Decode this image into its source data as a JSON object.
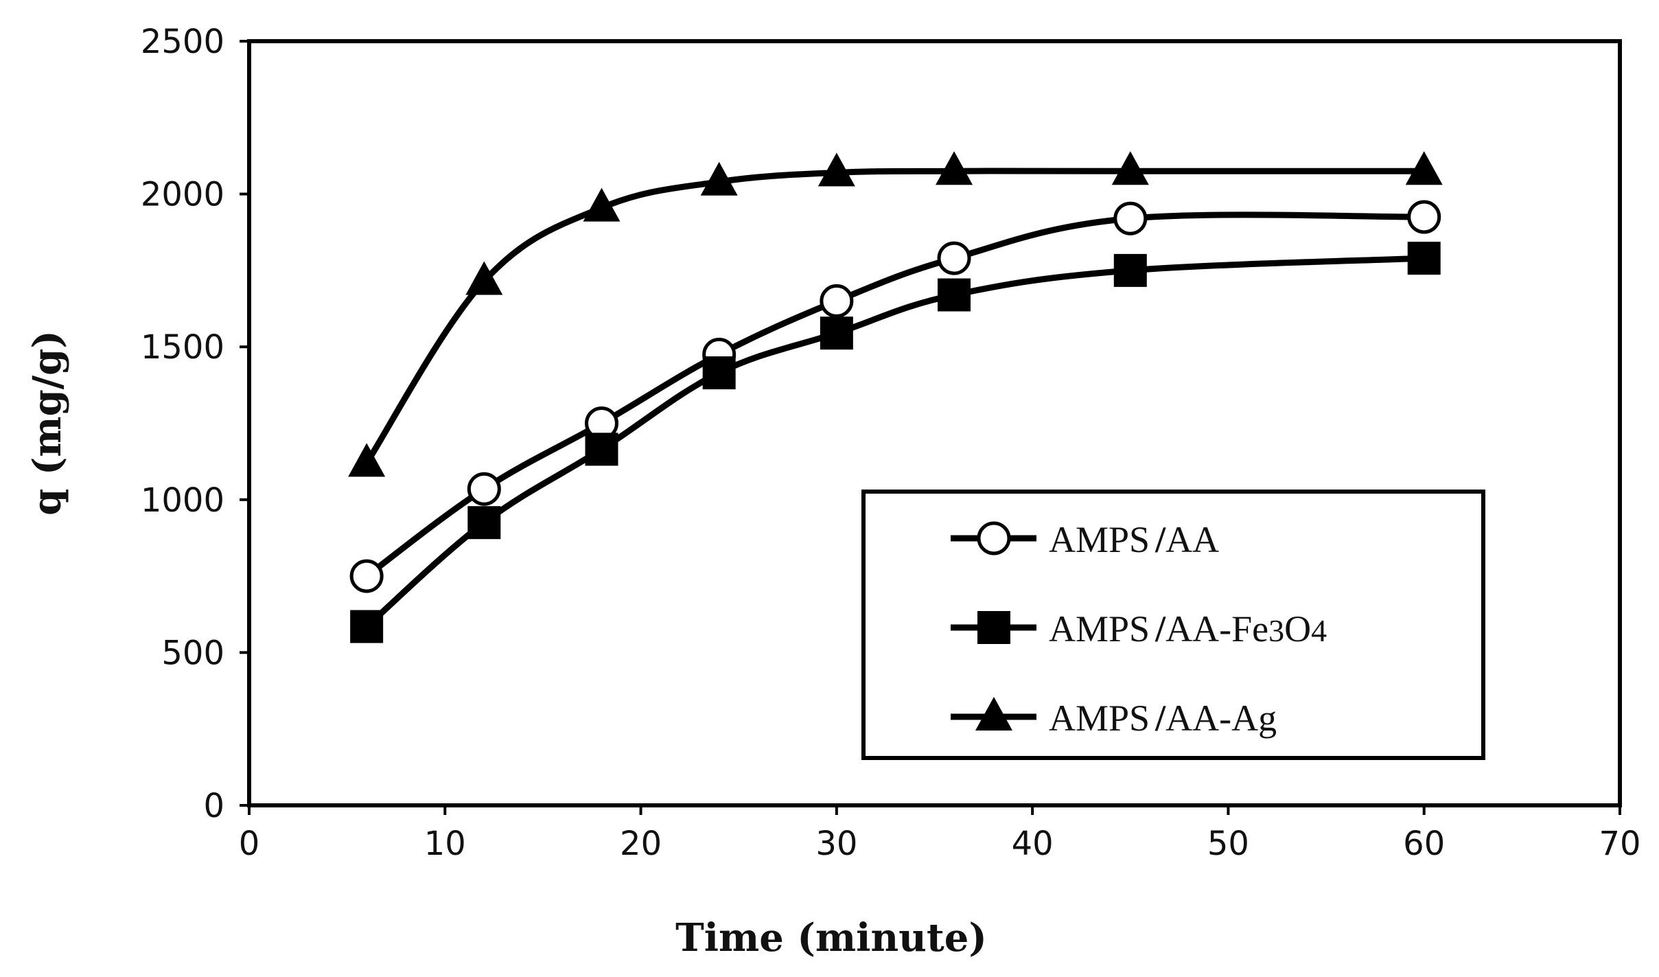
{
  "chart_data": {
    "type": "line",
    "title": "",
    "xlabel": "Time (minute)",
    "ylabel": "q (mg/g)",
    "xlim": [
      0,
      70
    ],
    "ylim": [
      0,
      2500
    ],
    "x_ticks": [
      0,
      10,
      20,
      30,
      40,
      50,
      60,
      70
    ],
    "y_ticks": [
      0,
      500,
      1000,
      1500,
      2000,
      2500
    ],
    "grid": false,
    "legend_position": "bottom-right",
    "x": [
      6,
      12,
      18,
      24,
      30,
      36,
      45,
      60
    ],
    "series": [
      {
        "name": "AMPS/AA",
        "legend": {
          "pre": "AMPS",
          "sep": "/",
          "post": "AA"
        },
        "marker": "open-circle",
        "values": [
          750,
          1035,
          1250,
          1475,
          1650,
          1790,
          1920,
          1925
        ]
      },
      {
        "name": "AMPS/AA-Fe3O4",
        "legend": {
          "pre": "AMPS",
          "sep": "/",
          "post": "AA-Fe",
          "sub1": "3",
          "mid": "O",
          "sub2": "4"
        },
        "marker": "filled-square",
        "values": [
          585,
          925,
          1165,
          1415,
          1545,
          1670,
          1750,
          1790
        ]
      },
      {
        "name": "AMPS/AA-Ag",
        "legend": {
          "pre": "AMPS",
          "sep": "/",
          "post": "AA-Ag"
        },
        "marker": "filled-triangle",
        "values": [
          1120,
          1715,
          1955,
          2040,
          2070,
          2075,
          2075,
          2075
        ]
      }
    ],
    "colors": {
      "line": "#000000",
      "background": "#ffffff"
    }
  }
}
